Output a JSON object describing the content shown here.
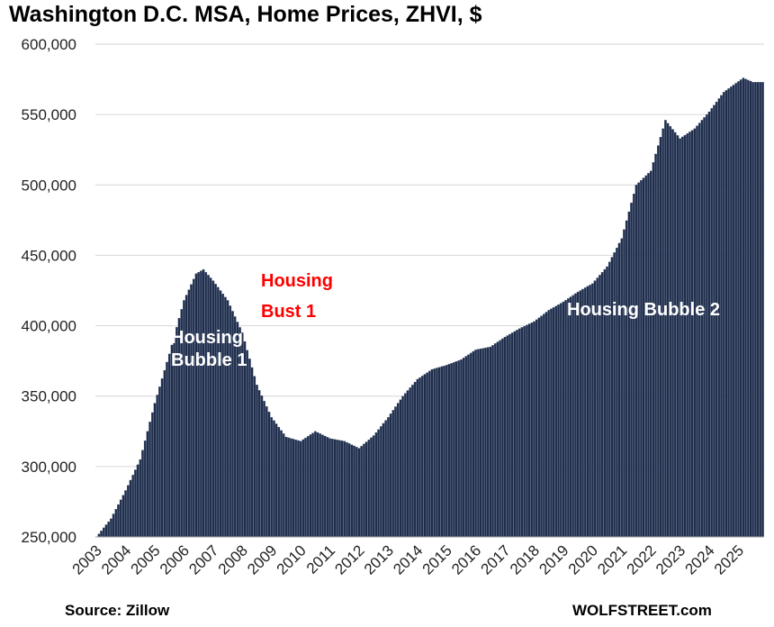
{
  "chart_data": {
    "type": "bar",
    "title": "Washington D.C. MSA, Home Prices, ZHVI, $",
    "ylabel": "",
    "xlabel": "",
    "ylim": [
      250000,
      600000
    ],
    "y_ticks": [
      250000,
      300000,
      350000,
      400000,
      450000,
      500000,
      550000,
      600000
    ],
    "y_tick_labels": [
      "250,000",
      "300,000",
      "350,000",
      "400,000",
      "450,000",
      "500,000",
      "550,000",
      "600,000"
    ],
    "x_tick_labels": [
      "2003",
      "2004",
      "2005",
      "2006",
      "2007",
      "2008",
      "2009",
      "2010",
      "2011",
      "2012",
      "2013",
      "2014",
      "2015",
      "2016",
      "2017",
      "2018",
      "2019",
      "2020",
      "2021",
      "2022",
      "2023",
      "2024",
      "2025"
    ],
    "frequency": "monthly",
    "start": "2003-01",
    "end": "2025-11",
    "grid": true,
    "bar_color": "#1f2d4a",
    "series": [
      {
        "name": "ZHVI",
        "anchors": [
          [
            "2003-01",
            250000
          ],
          [
            "2003-07",
            263000
          ],
          [
            "2004-01",
            283000
          ],
          [
            "2004-07",
            305000
          ],
          [
            "2005-01",
            345000
          ],
          [
            "2005-07",
            380000
          ],
          [
            "2006-01",
            418000
          ],
          [
            "2006-06",
            437000
          ],
          [
            "2006-09",
            440000
          ],
          [
            "2007-01",
            432000
          ],
          [
            "2007-07",
            418000
          ],
          [
            "2008-01",
            395000
          ],
          [
            "2008-07",
            358000
          ],
          [
            "2009-01",
            335000
          ],
          [
            "2009-07",
            321000
          ],
          [
            "2010-01",
            318000
          ],
          [
            "2010-07",
            325000
          ],
          [
            "2011-01",
            320000
          ],
          [
            "2011-07",
            318000
          ],
          [
            "2012-01",
            313000
          ],
          [
            "2012-07",
            322000
          ],
          [
            "2013-01",
            335000
          ],
          [
            "2013-07",
            350000
          ],
          [
            "2014-01",
            362000
          ],
          [
            "2014-07",
            369000
          ],
          [
            "2015-01",
            372000
          ],
          [
            "2015-07",
            376000
          ],
          [
            "2016-01",
            383000
          ],
          [
            "2016-07",
            385000
          ],
          [
            "2017-01",
            392000
          ],
          [
            "2017-07",
            398000
          ],
          [
            "2018-01",
            403000
          ],
          [
            "2018-07",
            411000
          ],
          [
            "2019-01",
            417000
          ],
          [
            "2019-07",
            424000
          ],
          [
            "2020-01",
            430000
          ],
          [
            "2020-07",
            442000
          ],
          [
            "2021-01",
            462000
          ],
          [
            "2021-07",
            500000
          ],
          [
            "2022-01",
            510000
          ],
          [
            "2022-07",
            546000
          ],
          [
            "2023-01",
            533000
          ],
          [
            "2023-07",
            540000
          ],
          [
            "2024-01",
            552000
          ],
          [
            "2024-07",
            566000
          ],
          [
            "2025-03",
            576000
          ],
          [
            "2025-07",
            573000
          ],
          [
            "2025-11",
            573000
          ]
        ]
      }
    ],
    "annotations": [
      {
        "lines": [
          "Housing",
          "Bubble 1"
        ],
        "color": "#ffffff"
      },
      {
        "lines": [
          "Housing",
          "Bust 1"
        ],
        "color": "#ff0000"
      },
      {
        "lines": [
          "Housing Bubble 2"
        ],
        "color": "#ffffff"
      }
    ],
    "source": "Source: Zillow",
    "credit": "WOLFSTREET.com"
  }
}
